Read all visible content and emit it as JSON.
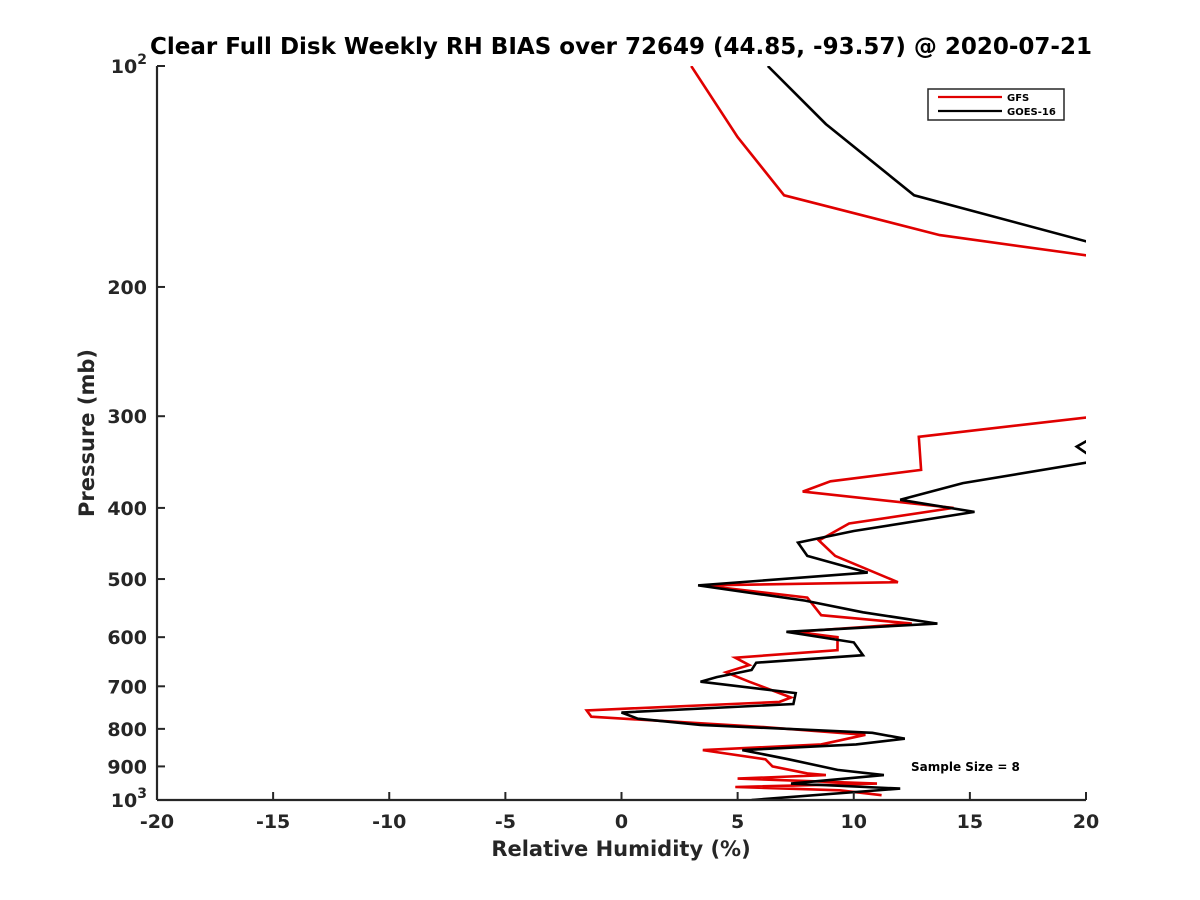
{
  "chart_data": {
    "type": "line",
    "title": "Clear Full Disk Weekly RH BIAS over 72649 (44.85, -93.57) @ 2020-07-21",
    "xlabel": "Relative Humidity (%)",
    "ylabel": "Pressure (mb)",
    "xlim": [
      -20,
      20
    ],
    "ylim": [
      100,
      1000
    ],
    "yscale": "log",
    "y_reversed": true,
    "x_ticks": [
      -20,
      -15,
      -10,
      -5,
      0,
      5,
      10,
      15,
      20
    ],
    "x_tick_labels": [
      "-20",
      "-15",
      "-10",
      "-5",
      "0",
      "5",
      "10",
      "15",
      "20"
    ],
    "y_ticks": [
      100,
      200,
      300,
      400,
      500,
      600,
      700,
      800,
      900,
      1000
    ],
    "y_tick_labels": [
      {
        "base": "10",
        "exp": "2"
      },
      {
        "base": "200",
        "exp": ""
      },
      {
        "base": "300",
        "exp": ""
      },
      {
        "base": "400",
        "exp": ""
      },
      {
        "base": "500",
        "exp": ""
      },
      {
        "base": "600",
        "exp": ""
      },
      {
        "base": "700",
        "exp": ""
      },
      {
        "base": "800",
        "exp": ""
      },
      {
        "base": "900",
        "exp": ""
      },
      {
        "base": "10",
        "exp": "3"
      }
    ],
    "grid": false,
    "legend_position": "top-right",
    "annotation": "Sample Size = 8",
    "series": [
      {
        "name": "GFS",
        "color": "#e00000",
        "points": [
          [
            3.0,
            100
          ],
          [
            5.0,
            125
          ],
          [
            7.0,
            150
          ],
          [
            13.7,
            170
          ],
          [
            20.5,
            182
          ],
          [
            20.5,
            300
          ],
          [
            12.8,
            320
          ],
          [
            12.9,
            355
          ],
          [
            9.0,
            368
          ],
          [
            7.8,
            380
          ],
          [
            14.3,
            400
          ],
          [
            9.8,
            420
          ],
          [
            8.5,
            443
          ],
          [
            9.2,
            465
          ],
          [
            11.9,
            505
          ],
          [
            3.5,
            510
          ],
          [
            8.0,
            530
          ],
          [
            8.6,
            560
          ],
          [
            12.5,
            575
          ],
          [
            7.5,
            590
          ],
          [
            9.3,
            600
          ],
          [
            9.3,
            625
          ],
          [
            4.9,
            640
          ],
          [
            5.5,
            655
          ],
          [
            4.5,
            670
          ],
          [
            5.5,
            690
          ],
          [
            7.3,
            725
          ],
          [
            6.8,
            735
          ],
          [
            -1.5,
            755
          ],
          [
            -1.3,
            770
          ],
          [
            6.0,
            795
          ],
          [
            10.5,
            815
          ],
          [
            8.6,
            840
          ],
          [
            3.5,
            855
          ],
          [
            6.2,
            880
          ],
          [
            6.5,
            900
          ],
          [
            8.0,
            920
          ],
          [
            8.8,
            925
          ],
          [
            5.0,
            935
          ],
          [
            11.0,
            950
          ],
          [
            4.9,
            960
          ],
          [
            9.4,
            970
          ],
          [
            11.2,
            985
          ]
        ]
      },
      {
        "name": "GOES-16",
        "color": "#000000",
        "points": [
          [
            6.3,
            100
          ],
          [
            8.8,
            120
          ],
          [
            12.6,
            150
          ],
          [
            20.5,
            175
          ],
          [
            20.5,
            318
          ],
          [
            19.6,
            330
          ],
          [
            20.5,
            345
          ],
          [
            14.7,
            370
          ],
          [
            12.0,
            390
          ],
          [
            15.2,
            405
          ],
          [
            10.0,
            430
          ],
          [
            7.6,
            446
          ],
          [
            8.0,
            465
          ],
          [
            10.6,
            490
          ],
          [
            3.3,
            510
          ],
          [
            7.9,
            535
          ],
          [
            10.4,
            555
          ],
          [
            13.6,
            575
          ],
          [
            7.1,
            590
          ],
          [
            10.0,
            610
          ],
          [
            10.4,
            635
          ],
          [
            5.8,
            650
          ],
          [
            5.6,
            665
          ],
          [
            4.1,
            680
          ],
          [
            3.4,
            690
          ],
          [
            7.5,
            715
          ],
          [
            7.4,
            740
          ],
          [
            0.0,
            760
          ],
          [
            0.7,
            775
          ],
          [
            3.4,
            790
          ],
          [
            10.8,
            810
          ],
          [
            12.2,
            825
          ],
          [
            10.1,
            840
          ],
          [
            5.2,
            855
          ],
          [
            7.2,
            880
          ],
          [
            9.3,
            910
          ],
          [
            11.3,
            925
          ],
          [
            7.3,
            950
          ],
          [
            12.0,
            965
          ],
          [
            5.6,
            1000
          ]
        ]
      }
    ]
  }
}
